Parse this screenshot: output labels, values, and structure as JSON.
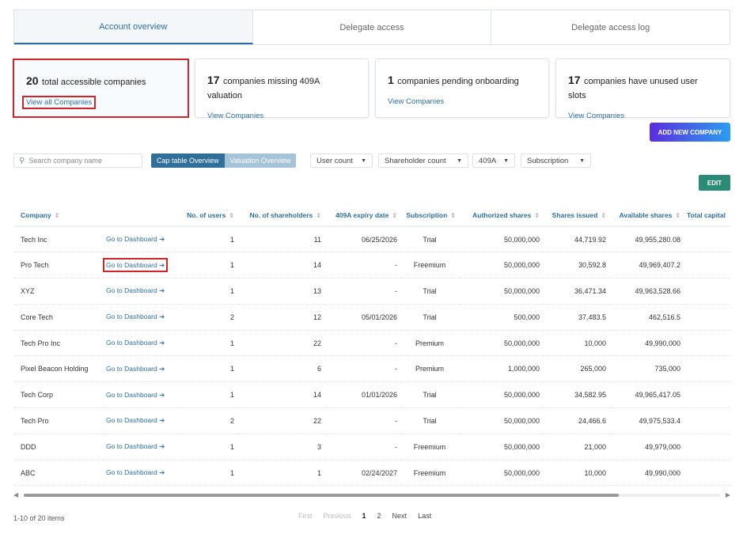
{
  "tabs": [
    "Account overview",
    "Delegate access",
    "Delegate access log"
  ],
  "cards": [
    {
      "count": "20",
      "text": "total accessible companies",
      "link": "View all Companies"
    },
    {
      "count": "17",
      "text": "companies missing 409A valuation",
      "link": "View Companies"
    },
    {
      "count": "1",
      "text": "companies pending onboarding",
      "link": "View Companies"
    },
    {
      "count": "17",
      "text": "companies have unused user slots",
      "link": "View Companies"
    }
  ],
  "add_button": "ADD NEW COMPANY",
  "search_placeholder": "Search company name",
  "view_toggle": {
    "active": "Cap table Overview",
    "inactive": "Valuation Overview"
  },
  "filters": [
    "User count",
    "Shareholder count",
    "409A",
    "Subscription"
  ],
  "edit_button": "EDIT",
  "columns": [
    "Company",
    "",
    "No. of users",
    "No. of shareholders",
    "409A expiry date",
    "Subscription",
    "Authorized shares",
    "Shares issued",
    "Available shares",
    "Total capital"
  ],
  "dashboard_link": "Go to Dashboard",
  "rows": [
    [
      "Tech Inc",
      "1",
      "11",
      "06/25/2026",
      "Trial",
      "50,000,000",
      "44,719.92",
      "49,955,280.08"
    ],
    [
      "Pro Tech",
      "1",
      "14",
      "-",
      "Freemium",
      "50,000,000",
      "30,592.8",
      "49,969,407.2"
    ],
    [
      "XYZ",
      "1",
      "13",
      "-",
      "Trial",
      "50,000,000",
      "36,471.34",
      "49,963,528.66"
    ],
    [
      "Core Tech",
      "2",
      "12",
      "05/01/2026",
      "Trial",
      "500,000",
      "37,483.5",
      "462,516.5"
    ],
    [
      "Tech Pro Inc",
      "1",
      "22",
      "-",
      "Premium",
      "50,000,000",
      "10,000",
      "49,990,000"
    ],
    [
      "Pixel Beacon Holding",
      "1",
      "6",
      "-",
      "Premium",
      "1,000,000",
      "265,000",
      "735,000"
    ],
    [
      "Tech Corp",
      "1",
      "14",
      "01/01/2026",
      "Trial",
      "50,000,000",
      "34,582.95",
      "49,965,417.05"
    ],
    [
      "Tech Pro",
      "2",
      "22",
      "-",
      "Trial",
      "50,000,000",
      "24,466.6",
      "49,975,533.4"
    ],
    [
      "DDD",
      "1",
      "3",
      "-",
      "Freemium",
      "50,000,000",
      "21,000",
      "49,979,000"
    ],
    [
      "ABC",
      "1",
      "1",
      "02/24/2027",
      "Freemium",
      "50,000,000",
      "10,000",
      "49,990,000"
    ]
  ],
  "pagination": {
    "summary": "1-10 of 20 items",
    "first": "First",
    "previous": "Previous",
    "pages": [
      "1",
      "2"
    ],
    "next": "Next",
    "last": "Last"
  }
}
